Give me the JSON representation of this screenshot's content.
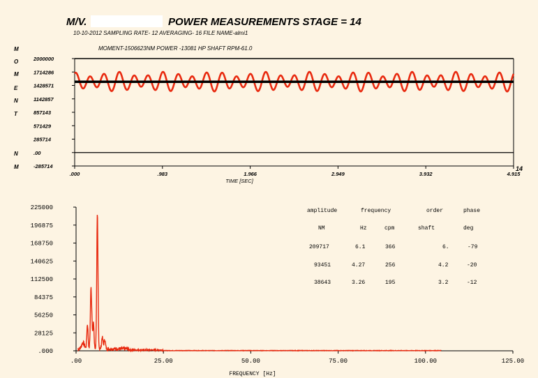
{
  "header": {
    "vessel_prefix": "M/V.",
    "title": "POWER MEASUREMENTS STAGE =  14",
    "info_line": "10-10-2012  SAMPLING RATE-   12   AVERAGING-   16    FILE NAME-almi1"
  },
  "colors": {
    "signal": "#e8290f",
    "mean": "#000000",
    "spectrum": "#e8290f",
    "background": "#fdf4e3"
  },
  "chart_data": [
    {
      "type": "line",
      "title": "MOMENT-1506623NM  POWER -13081  HP    SHAFT RPM-61.0",
      "ylabel": "MOMENT NM",
      "ylabel_letters": [
        "M",
        "O",
        "M",
        "E",
        "N",
        "T",
        "N",
        "M"
      ],
      "xlabel": "TIME [SEC]",
      "xlim": [
        0,
        4.915
      ],
      "ylim": [
        -285714,
        2000000
      ],
      "x_ticks": [
        ".000",
        ".983",
        "1.966",
        "2.949",
        "3.932",
        "4.915"
      ],
      "y_ticks": [
        "2000000",
        "1714286",
        "1428571",
        "1142857",
        "857143",
        "571429",
        "285714",
        ".00",
        "-285714"
      ],
      "corner_label": "14",
      "mean_value": 1506623,
      "baseline_value": 0,
      "series": [
        {
          "signal_center": 1510000,
          "primary_amplitude": 160000,
          "primary_frequency_hz": 6.1,
          "secondary_amplitude": 50000,
          "secondary_frequency_hz": 4.27
        }
      ]
    },
    {
      "type": "line",
      "xlabel": "FREQUENCY  [Hz]",
      "xlim": [
        0,
        125
      ],
      "ylim": [
        0,
        225000
      ],
      "x_ticks": [
        ".00",
        "25.00",
        "50.00",
        "75.00",
        "100.00",
        "125.00"
      ],
      "y_ticks": [
        "225000",
        "196875",
        "168750",
        "140625",
        "112500",
        "84375",
        "56250",
        "28125",
        ".000"
      ],
      "peaks": [
        {
          "frequency_hz": 6.1,
          "amplitude": 209717
        },
        {
          "frequency_hz": 4.27,
          "amplitude": 93451
        },
        {
          "frequency_hz": 3.26,
          "amplitude": 38643
        }
      ],
      "table": {
        "headers": [
          "amplitude",
          "frequency",
          "order",
          "phase"
        ],
        "units": [
          "NM",
          "Hz",
          "cpm",
          "shaft",
          "deg"
        ],
        "rows": [
          [
            "209717",
            "6.1",
            "366",
            "6.",
            "-79"
          ],
          [
            "93451",
            "4.27",
            "256",
            "4.2",
            "-20"
          ],
          [
            "38643",
            "3.26",
            "195",
            "3.2",
            "-12"
          ]
        ]
      }
    }
  ]
}
